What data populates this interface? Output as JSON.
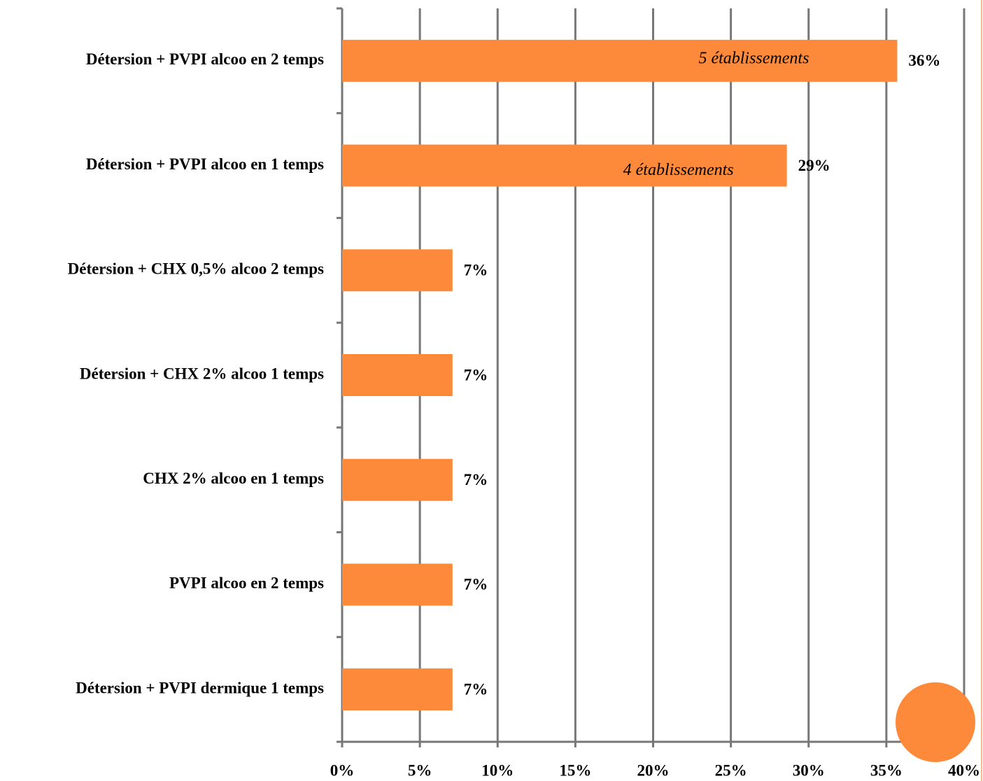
{
  "chart_data": {
    "type": "bar",
    "orientation": "horizontal",
    "categories": [
      "Détersion + PVPI alcoo en 2 temps",
      "Détersion + PVPI alcoo en 1 temps",
      "Détersion + CHX 0,5% alcoo 2 temps",
      "Détersion + CHX 2% alcoo 1 temps",
      "CHX 2% alcoo en 1 temps",
      "PVPI alcoo en 2 temps",
      "Détersion + PVPI dermique 1 temps"
    ],
    "values": [
      35.7,
      28.6,
      7.1,
      7.1,
      7.1,
      7.1,
      7.1
    ],
    "value_labels": [
      "36%",
      "29%",
      "7%",
      "7%",
      "7%",
      "7%",
      "7%"
    ],
    "annotations": [
      "5 établissements",
      "4 établissements"
    ],
    "color": "#fd8a3a",
    "xlim": [
      0,
      40
    ],
    "xticks": [
      {
        "value": 0,
        "label": "0%"
      },
      {
        "value": 5,
        "label": "5%"
      },
      {
        "value": 10,
        "label": "10%"
      },
      {
        "value": 15,
        "label": "15%"
      },
      {
        "value": 20,
        "label": "20%"
      },
      {
        "value": 25,
        "label": "25%"
      },
      {
        "value": 30,
        "label": "30%"
      },
      {
        "value": 35,
        "label": "35%"
      },
      {
        "value": 40,
        "label": "40%"
      }
    ],
    "grid": true
  }
}
